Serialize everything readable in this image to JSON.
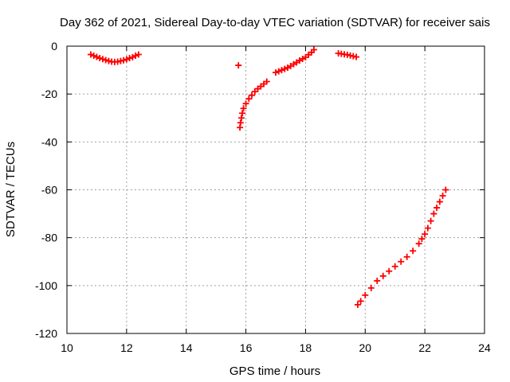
{
  "chart_data": {
    "type": "scatter",
    "title": "Day 362 of 2021, Sidereal Day-to-day VTEC variation (SDTVAR) for receiver sais",
    "xlabel": "GPS time / hours",
    "ylabel": "SDTVAR / TECUs",
    "xlim": [
      10,
      24
    ],
    "ylim": [
      -120,
      0
    ],
    "xticks": [
      10,
      12,
      14,
      16,
      18,
      20,
      22,
      24
    ],
    "yticks": [
      0,
      -20,
      -40,
      -60,
      -80,
      -100,
      -120
    ],
    "grid": true,
    "marker": "plus",
    "marker_color": "#ff0000",
    "series": [
      {
        "points": [
          [
            10.8,
            -3.5
          ],
          [
            10.9,
            -4.0
          ],
          [
            11.0,
            -4.5
          ],
          [
            11.1,
            -5.0
          ],
          [
            11.2,
            -5.4
          ],
          [
            11.3,
            -5.8
          ],
          [
            11.4,
            -6.2
          ],
          [
            11.5,
            -6.5
          ],
          [
            11.6,
            -6.6
          ],
          [
            11.7,
            -6.5
          ],
          [
            11.8,
            -6.2
          ],
          [
            11.9,
            -5.9
          ],
          [
            12.0,
            -5.5
          ],
          [
            12.1,
            -5.0
          ],
          [
            12.2,
            -4.6
          ],
          [
            12.3,
            -4.0
          ],
          [
            12.4,
            -3.5
          ],
          [
            15.75,
            -8.0
          ],
          [
            15.8,
            -34.0
          ],
          [
            15.82,
            -32.0
          ],
          [
            15.85,
            -30.0
          ],
          [
            15.88,
            -28.0
          ],
          [
            15.92,
            -26.0
          ],
          [
            16.0,
            -24.0
          ],
          [
            16.1,
            -22.0
          ],
          [
            16.2,
            -20.5
          ],
          [
            16.3,
            -19.0
          ],
          [
            16.4,
            -17.8
          ],
          [
            16.5,
            -16.8
          ],
          [
            16.6,
            -15.8
          ],
          [
            16.7,
            -14.8
          ],
          [
            17.0,
            -11.0
          ],
          [
            17.1,
            -10.5
          ],
          [
            17.2,
            -10.0
          ],
          [
            17.3,
            -9.5
          ],
          [
            17.4,
            -9.0
          ],
          [
            17.5,
            -8.3
          ],
          [
            17.6,
            -7.5
          ],
          [
            17.7,
            -6.8
          ],
          [
            17.8,
            -6.0
          ],
          [
            17.9,
            -5.3
          ],
          [
            18.0,
            -4.6
          ],
          [
            18.1,
            -3.6
          ],
          [
            18.2,
            -2.6
          ],
          [
            18.28,
            -1.5
          ],
          [
            19.1,
            -3.0
          ],
          [
            19.2,
            -3.2
          ],
          [
            19.3,
            -3.4
          ],
          [
            19.4,
            -3.6
          ],
          [
            19.5,
            -3.9
          ],
          [
            19.6,
            -4.2
          ],
          [
            19.7,
            -4.5
          ],
          [
            19.75,
            -108.0
          ],
          [
            19.85,
            -106.5
          ],
          [
            20.0,
            -104.0
          ],
          [
            20.2,
            -101.0
          ],
          [
            20.4,
            -98.0
          ],
          [
            20.6,
            -96.0
          ],
          [
            20.8,
            -94.0
          ],
          [
            21.0,
            -92.0
          ],
          [
            21.2,
            -90.0
          ],
          [
            21.4,
            -88.0
          ],
          [
            21.6,
            -85.5
          ],
          [
            21.8,
            -82.5
          ],
          [
            21.9,
            -80.5
          ],
          [
            22.0,
            -78.5
          ],
          [
            22.1,
            -76.0
          ],
          [
            22.2,
            -73.0
          ],
          [
            22.3,
            -70.0
          ],
          [
            22.4,
            -67.5
          ],
          [
            22.5,
            -65.0
          ],
          [
            22.6,
            -62.5
          ],
          [
            22.7,
            -60.0
          ]
        ]
      }
    ]
  }
}
